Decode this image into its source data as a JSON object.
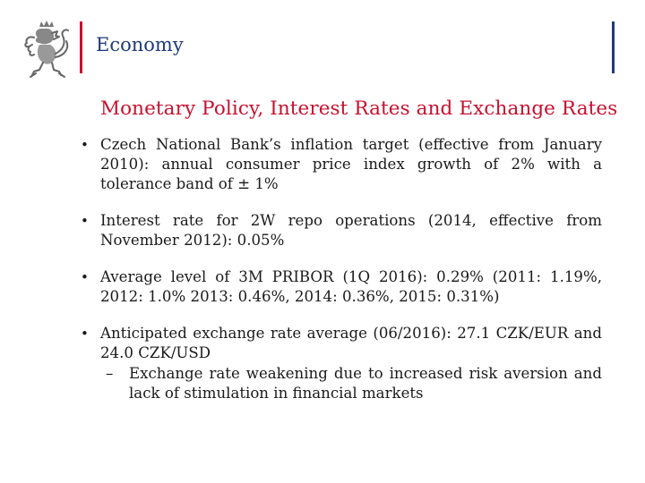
{
  "header": {
    "section_title": "Economy",
    "logo": "czech-lion-icon",
    "colors": {
      "red": "#c8102e",
      "blue": "#1f3a7a"
    }
  },
  "slide_title": "Monetary Policy, Interest Rates and Exchange Rates",
  "bullets": [
    {
      "text": "Czech National Bank’s inflation target (effective from January 2010): annual consumer price index growth of 2% with a tolerance band of ± 1%"
    },
    {
      "text": "Interest rate for 2W repo operations (2014, effective from November 2012): 0.05%"
    },
    {
      "text": "Average level of 3M PRIBOR (1Q 2016): 0.29% (2011: 1.19%, 2012: 1.0% 2013: 0.46%, 2014: 0.36%, 2015: 0.31%)"
    },
    {
      "text": "Anticipated exchange rate average (06/2016): 27.1 CZK/EUR and 24.0 CZK/USD",
      "sub": [
        "Exchange rate weakening due to increased risk aversion and lack of stimulation in financial markets"
      ]
    }
  ]
}
